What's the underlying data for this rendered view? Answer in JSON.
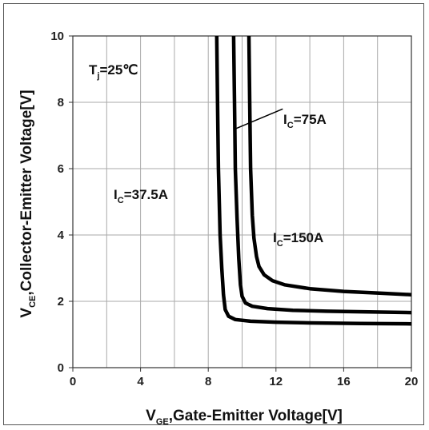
{
  "chart_data": {
    "type": "line",
    "xlabel": {
      "main": "V",
      "sub": "GE",
      "rest": ",Gate-Emitter Voltage[V]"
    },
    "ylabel": {
      "main": "V",
      "sub": "CE",
      "rest": ",Collector-Emitter Voltage[V]"
    },
    "xlim": [
      0,
      20
    ],
    "ylim": [
      0,
      10
    ],
    "x_ticks": [
      "0",
      "4",
      "8",
      "12",
      "16",
      "20"
    ],
    "y_ticks": [
      "0",
      "2",
      "4",
      "6",
      "8",
      "10"
    ],
    "x_tick_values": [
      0,
      4,
      8,
      12,
      16,
      20
    ],
    "y_tick_values": [
      0,
      2,
      4,
      6,
      8,
      10
    ],
    "grid_x": [
      0,
      2,
      4,
      6,
      8,
      10,
      12,
      14,
      16,
      18,
      20
    ],
    "grid_y": [
      0,
      2,
      4,
      6,
      8,
      10
    ],
    "grid": true,
    "line_color": "#000000",
    "grid_color": "#aaaaaa",
    "annotations": {
      "tj": {
        "main": "T",
        "sub": "j",
        "rest": "=25℃"
      },
      "ic37": {
        "main": "I",
        "sub": "C",
        "rest": "=37.5A"
      },
      "ic75": {
        "main": "I",
        "sub": "C",
        "rest": "=75A"
      },
      "ic150": {
        "main": "I",
        "sub": "C",
        "rest": "=150A"
      }
    },
    "series": [
      {
        "x": [
          8.5,
          8.55,
          8.6,
          8.7,
          8.8,
          8.9,
          9.0,
          9.2,
          9.6,
          10.5,
          12.0,
          14.0,
          17.0,
          20.0
        ],
        "y": [
          10.0,
          8.0,
          6.0,
          4.0,
          3.0,
          2.2,
          1.75,
          1.55,
          1.45,
          1.4,
          1.37,
          1.35,
          1.33,
          1.32
        ]
      },
      {
        "x": [
          9.5,
          9.55,
          9.6,
          9.7,
          9.8,
          9.9,
          10.0,
          10.2,
          10.6,
          11.5,
          13.0,
          15.0,
          17.5,
          20.0
        ],
        "y": [
          10.0,
          8.0,
          6.0,
          4.5,
          3.3,
          2.5,
          2.15,
          1.95,
          1.85,
          1.78,
          1.73,
          1.7,
          1.68,
          1.66
        ]
      },
      {
        "x": [
          10.4,
          10.45,
          10.5,
          10.6,
          10.7,
          10.85,
          11.0,
          11.3,
          11.8,
          12.5,
          14.0,
          16.0,
          18.0,
          20.0
        ],
        "y": [
          10.0,
          8.0,
          6.0,
          4.6,
          3.9,
          3.35,
          3.05,
          2.8,
          2.62,
          2.5,
          2.38,
          2.3,
          2.25,
          2.2
        ]
      }
    ],
    "pointer": {
      "x": [
        9.6,
        12.4
      ],
      "y": [
        7.2,
        7.8
      ]
    }
  }
}
